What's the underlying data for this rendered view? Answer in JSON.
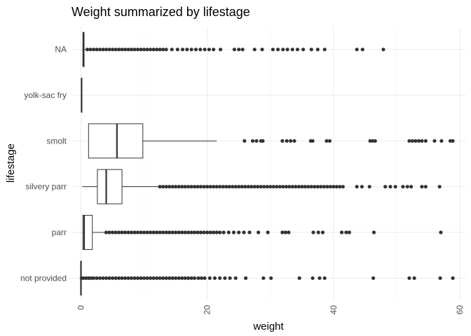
{
  "chart_data": {
    "type": "boxplot",
    "title": "Weight summarized by lifestage",
    "xlabel": "weight",
    "ylabel": "lifestage",
    "xlim": [
      -1.5,
      61
    ],
    "xticks": [
      0,
      20,
      40,
      60
    ],
    "grid": true,
    "categories": [
      "not provided",
      "parr",
      "silvery parr",
      "smolt",
      "yolk-sac fry",
      "NA"
    ],
    "boxes": [
      {
        "category": "not provided",
        "min": 0,
        "q1": 0,
        "median": 0,
        "q3": 0,
        "max": 0,
        "outliers": [
          0.1,
          0.4,
          0.8,
          1.2,
          1.6,
          2.0,
          2.5,
          3.0,
          3.5,
          4.0,
          4.5,
          5.0,
          5.5,
          6.0,
          6.5,
          7.0,
          7.5,
          8.0,
          8.5,
          9.0,
          9.5,
          10.0,
          10.5,
          11.0,
          11.5,
          12.0,
          12.5,
          13.0,
          13.5,
          14.0,
          14.5,
          15.0,
          15.5,
          16.0,
          16.5,
          17.0,
          17.5,
          18.0,
          18.6,
          19.1,
          19.6,
          20.4,
          21.2,
          22.0,
          22.8,
          23.6,
          24.5,
          26.1,
          28.9,
          30.1,
          34.6,
          36.7,
          37.8,
          38.6,
          46.3,
          52.0,
          52.8,
          56.9,
          58.9
        ]
      },
      {
        "category": "parr",
        "min": 0.2,
        "q1": 0.3,
        "median": 0.5,
        "q3": 1.8,
        "max": 3.9,
        "outliers": [
          4.0,
          4.5,
          5.0,
          5.5,
          6.0,
          6.5,
          7.0,
          7.5,
          8.0,
          8.5,
          9.0,
          9.5,
          10.0,
          10.5,
          11.0,
          11.5,
          12.0,
          12.5,
          13.0,
          13.5,
          14.0,
          14.5,
          15.0,
          15.5,
          16.0,
          16.5,
          17.0,
          17.5,
          18.0,
          18.5,
          19.0,
          19.5,
          20.0,
          20.5,
          21.0,
          21.5,
          22.0,
          22.6,
          23.4,
          24.2,
          25.0,
          25.8,
          26.7,
          28.1,
          29.6,
          31.9,
          32.4,
          32.9,
          36.8,
          37.6,
          38.3,
          41.3,
          42.0,
          42.5,
          46.4,
          57.0
        ]
      },
      {
        "category": "silvery parr",
        "min": 0.2,
        "q1": 2.6,
        "median": 4.0,
        "q3": 6.5,
        "max": 12.2,
        "outliers": [
          12.5,
          13.0,
          13.5,
          14.0,
          14.5,
          15.0,
          15.5,
          16.0,
          16.5,
          17.0,
          17.5,
          18.0,
          18.5,
          19.0,
          19.5,
          20.0,
          20.5,
          21.0,
          21.5,
          22.0,
          22.5,
          23.0,
          23.5,
          24.0,
          24.5,
          25.0,
          25.5,
          26.0,
          26.5,
          27.0,
          27.5,
          28.0,
          28.5,
          29.0,
          29.5,
          30.0,
          30.5,
          31.0,
          31.5,
          32.0,
          32.5,
          33.0,
          33.5,
          34.0,
          34.5,
          35.0,
          35.5,
          36.0,
          36.5,
          37.0,
          37.5,
          38.0,
          38.5,
          39.0,
          39.5,
          40.0,
          40.5,
          41.0,
          41.5,
          43.7,
          44.5,
          45.7,
          48.2,
          49.0,
          49.8,
          51.0,
          51.7,
          52.3,
          54.0,
          54.6,
          56.8
        ]
      },
      {
        "category": "smolt",
        "min": 1.2,
        "q1": 1.2,
        "median": 5.7,
        "q3": 9.8,
        "max": 21.5,
        "outliers": [
          25.9,
          27.2,
          27.8,
          28.5,
          28.8,
          31.9,
          32.6,
          33.2,
          33.8,
          36.4,
          36.7,
          38.9,
          39.4,
          45.8,
          46.2,
          46.6,
          52.0,
          52.5,
          53.0,
          53.5,
          54.0,
          54.6,
          56.0,
          57.1,
          58.5,
          58.9
        ]
      },
      {
        "category": "yolk-sac fry",
        "min": 0.1,
        "q1": 0.1,
        "median": 0.1,
        "q3": 0.15,
        "max": 0.2,
        "outliers": []
      },
      {
        "category": "NA",
        "min": 0.2,
        "q1": 0.3,
        "median": 0.4,
        "q3": 0.5,
        "max": 0.9,
        "outliers": [
          1.0,
          1.5,
          2.0,
          2.5,
          3.0,
          3.5,
          4.0,
          4.5,
          5.0,
          5.5,
          6.0,
          6.5,
          7.0,
          7.5,
          8.0,
          8.5,
          9.0,
          9.5,
          10.0,
          10.5,
          11.0,
          11.5,
          12.0,
          12.5,
          13.0,
          13.5,
          14.4,
          15.3,
          16.1,
          16.8,
          17.5,
          18.2,
          18.9,
          19.6,
          20.3,
          21.0,
          22.1,
          24.3,
          25.0,
          25.6,
          27.5,
          28.7,
          30.4,
          31.2,
          32.0,
          32.7,
          33.5,
          34.3,
          35.2,
          36.5,
          37.5,
          38.6,
          43.7,
          44.6,
          47.9
        ]
      }
    ]
  }
}
